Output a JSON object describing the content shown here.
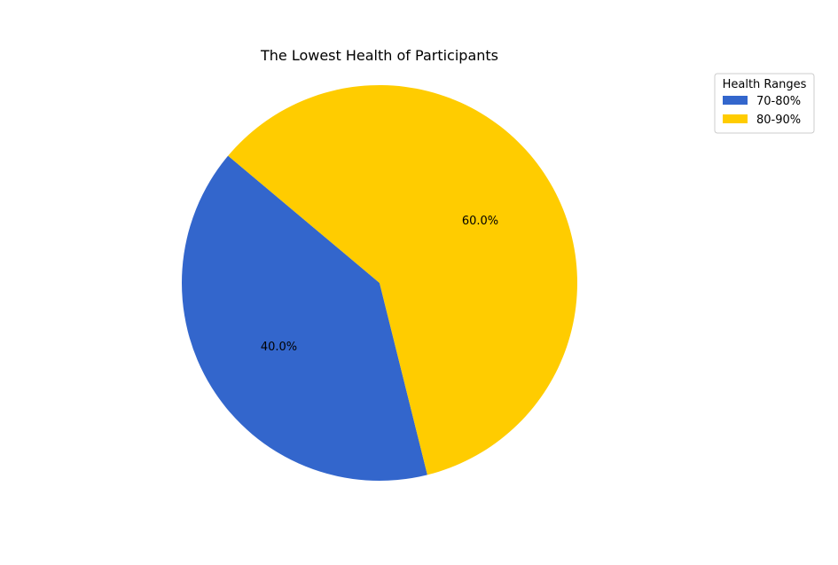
{
  "chart_data": {
    "type": "pie",
    "title": "The Lowest Health of Participants",
    "categories": [
      "70-80%",
      "80-90%"
    ],
    "values": [
      40.0,
      60.0
    ],
    "value_labels": [
      "40.0%",
      "60.0%"
    ],
    "colors": [
      "#3366cc",
      "#ffcc00"
    ],
    "start_angle_degrees": 140,
    "direction": "counterclockwise",
    "legend": {
      "title": "Health Ranges",
      "placement": "top-right",
      "entries": [
        "70-80%",
        "80-90%"
      ]
    }
  }
}
